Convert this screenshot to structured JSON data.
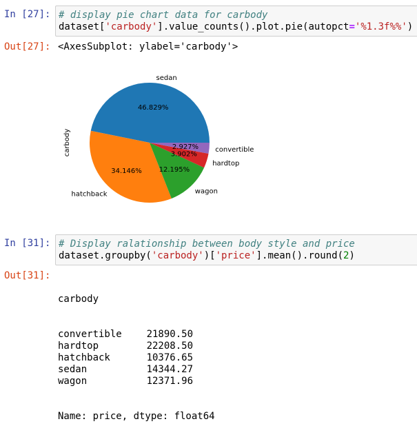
{
  "cell27": {
    "in_prompt": "In [27]:",
    "comment": "# display pie chart data for carbody",
    "code": {
      "p1": "dataset[",
      "s1": "'carbody'",
      "p2": "].value_counts().plot.pie(autopct",
      "op": "=",
      "s2": "'%1.3f%%'",
      "p3": ")"
    },
    "out_prompt": "Out[27]:",
    "out_text": "<AxesSubplot: ylabel='carbody'>"
  },
  "chart_data": {
    "type": "pie",
    "ylabel": "carbody",
    "slices": [
      {
        "label": "sedan",
        "value": 46.829,
        "pct_label": "46.829%",
        "color": "#1f77b4"
      },
      {
        "label": "hatchback",
        "value": 34.146,
        "pct_label": "34.146%",
        "color": "#ff7f0e"
      },
      {
        "label": "wagon",
        "value": 12.195,
        "pct_label": "12.195%",
        "color": "#2ca02c"
      },
      {
        "label": "hardtop",
        "value": 3.902,
        "pct_label": "3.902%",
        "color": "#d62728"
      },
      {
        "label": "convertible",
        "value": 2.927,
        "pct_label": "2.927%",
        "color": "#9467bd"
      }
    ]
  },
  "cell31": {
    "in_prompt": "In [31]:",
    "comment": "# Display ralationship between body style and price",
    "code": {
      "p1": "dataset.groupby(",
      "s1": "'carbody'",
      "p2": ")[",
      "s2": "'price'",
      "p3": "].mean().round(",
      "n1": "2",
      "p4": ")"
    },
    "out_prompt": "Out[31]:",
    "series_header": "carbody",
    "series": [
      {
        "name": "convertible",
        "value": "21890.50"
      },
      {
        "name": "hardtop",
        "value": "22208.50"
      },
      {
        "name": "hatchback",
        "value": "10376.65"
      },
      {
        "name": "sedan",
        "value": "14344.27"
      },
      {
        "name": "wagon",
        "value": "12371.96"
      }
    ],
    "footer": "Name: price, dtype: float64"
  }
}
